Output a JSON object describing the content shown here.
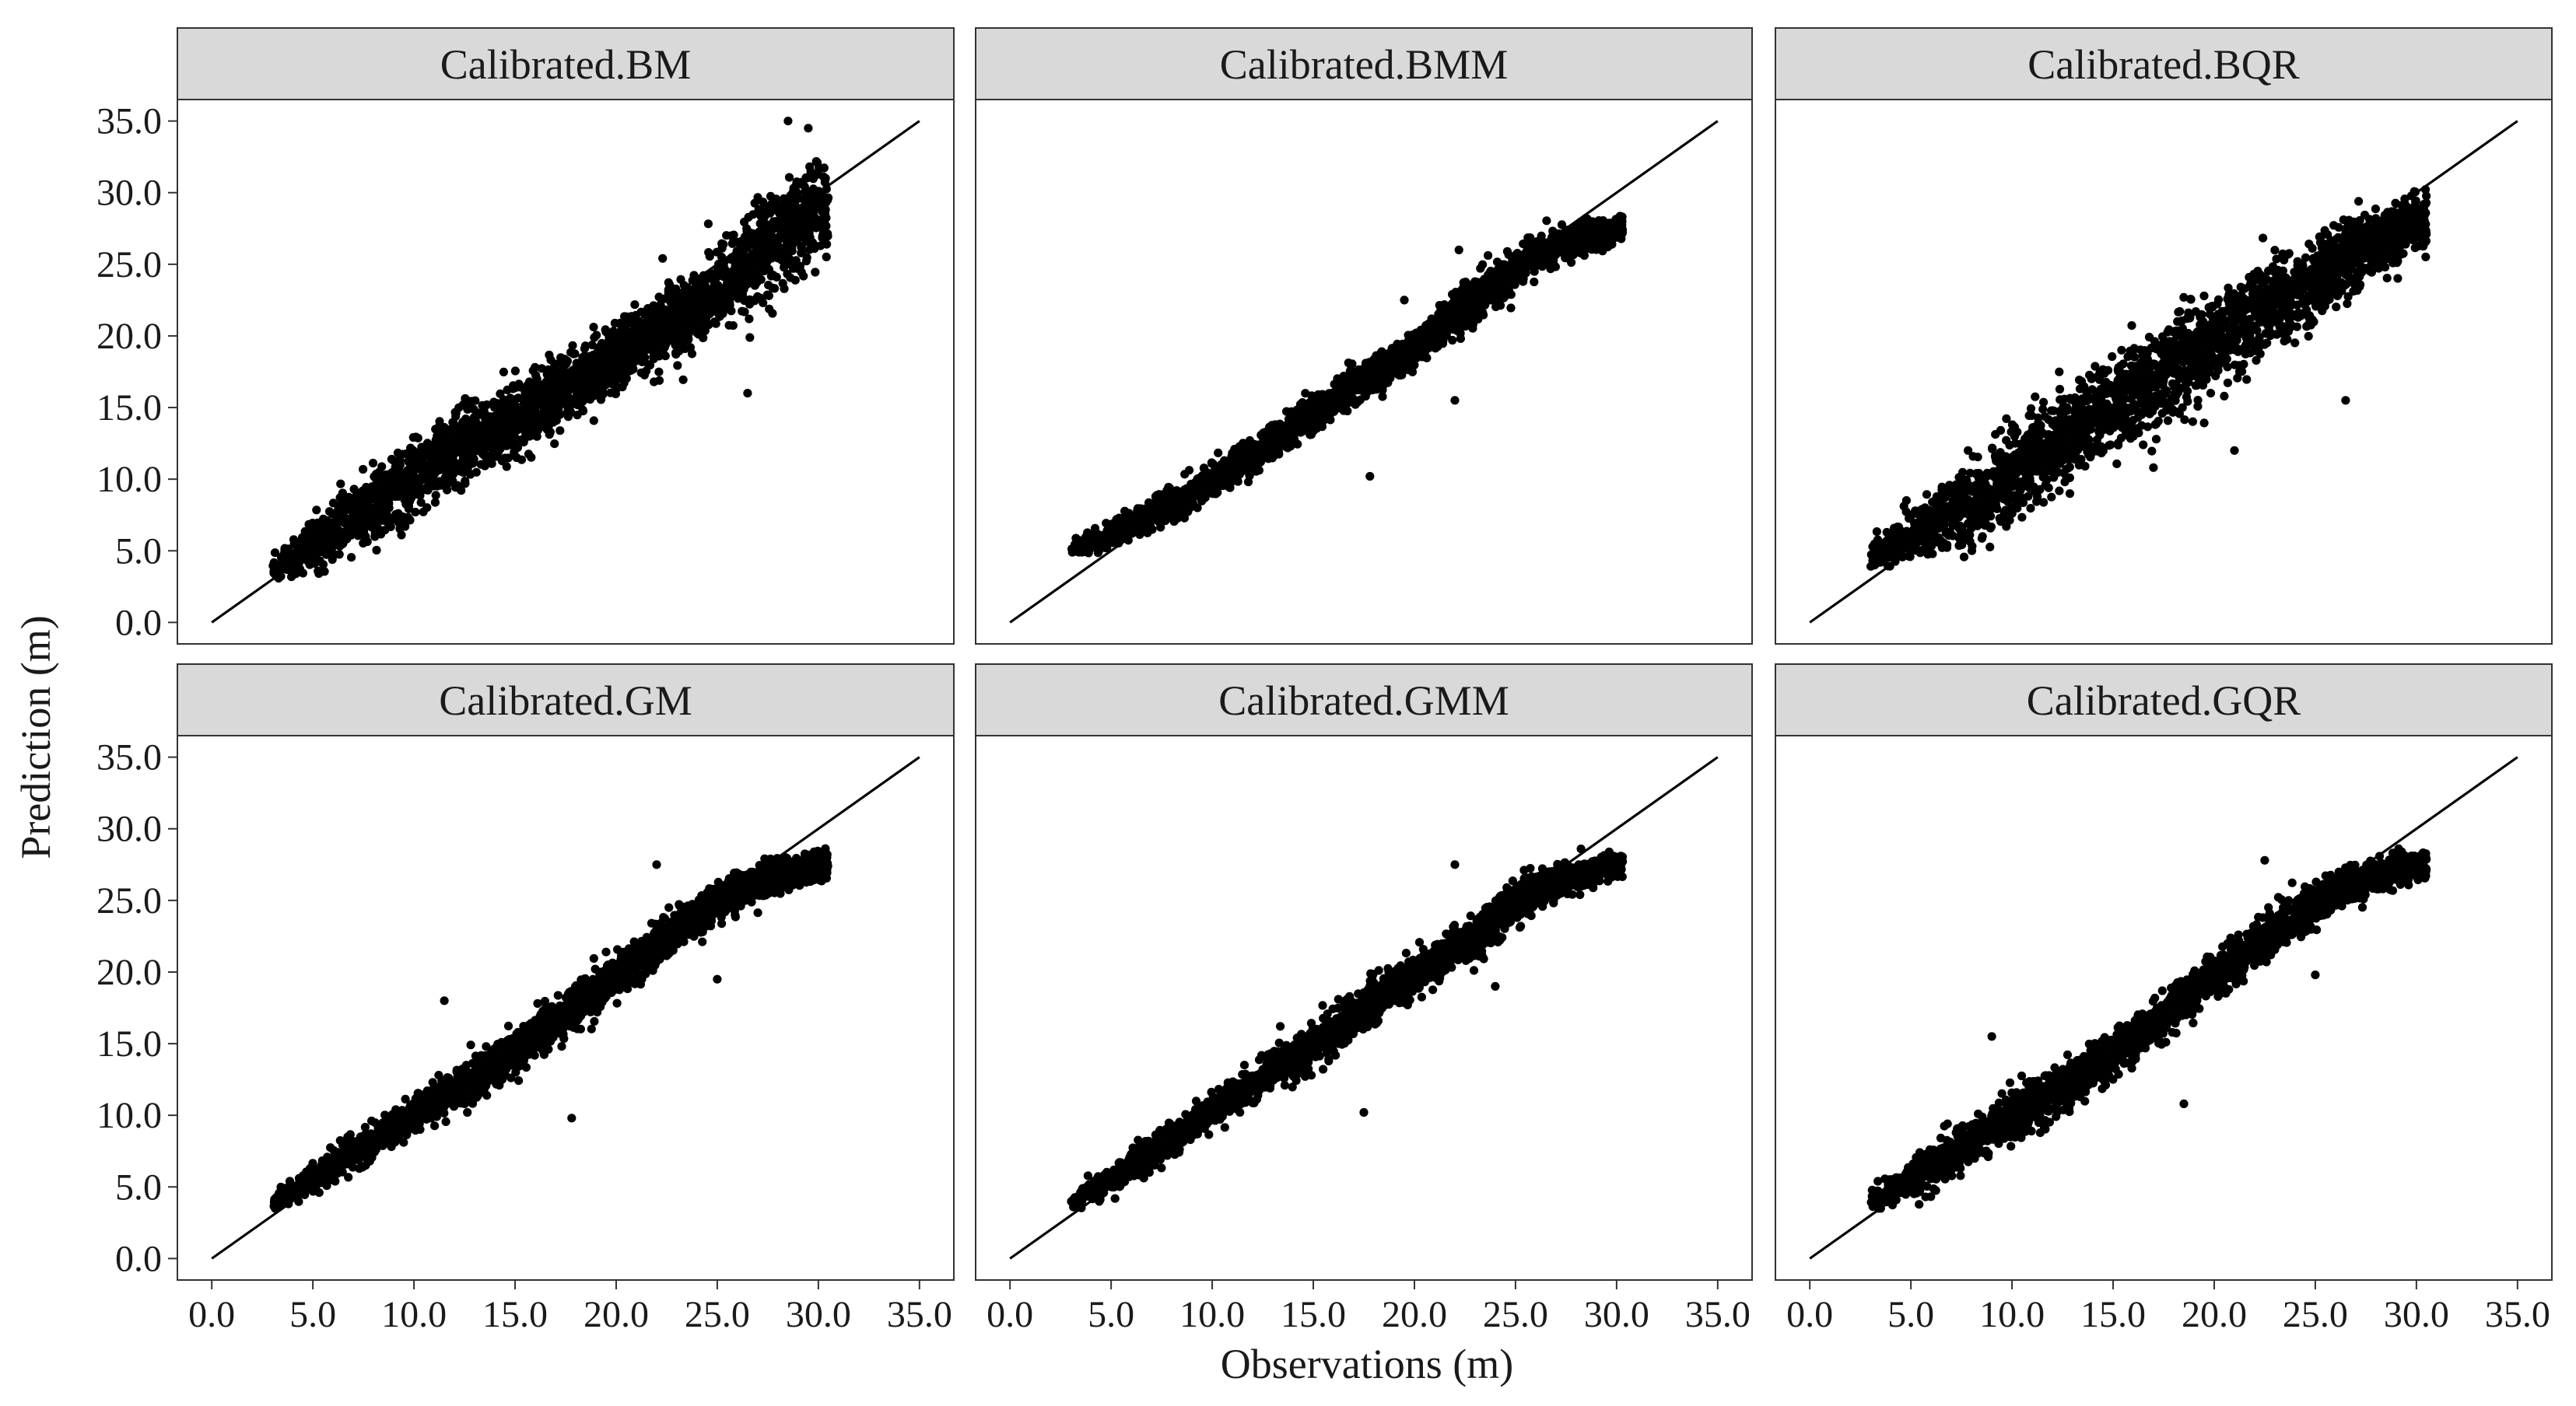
{
  "chart_data": {
    "type": "scatter",
    "layout": "facet-grid",
    "facet_rows": 2,
    "facet_cols": 3,
    "xlabel": "Observations (m)",
    "ylabel": "Prediction (m)",
    "xlim": [
      -1.7,
      36.7
    ],
    "ylim": [
      -1.5,
      36.5
    ],
    "xticks": [
      0,
      5,
      10,
      15,
      20,
      25,
      30,
      35
    ],
    "yticks": [
      0,
      5,
      10,
      15,
      20,
      25,
      30,
      35
    ],
    "xtick_labels": [
      "0.0",
      "5.0",
      "10.0",
      "15.0",
      "20.0",
      "25.0",
      "30.0",
      "35.0"
    ],
    "ytick_labels": [
      "0.0",
      "5.0",
      "10.0",
      "15.0",
      "20.0",
      "25.0",
      "30.0",
      "35.0"
    ],
    "reference_line": {
      "from": [
        0,
        0
      ],
      "to": [
        35,
        35
      ]
    },
    "grid": false,
    "colors": {
      "points": "#000000",
      "line": "#000000",
      "strip_fill": "#d9d9d9",
      "strip_border": "#333333",
      "panel_border": "#333333"
    },
    "panels": [
      {
        "title": "Calibrated.BM",
        "x_range": [
          3.0,
          30.5
        ],
        "y_range": [
          2.5,
          35.0
        ],
        "trend": [
          [
            3.0,
            3.8
          ],
          [
            8.0,
            8.2
          ],
          [
            12.0,
            12.0
          ],
          [
            16.0,
            15.0
          ],
          [
            20.0,
            18.5
          ],
          [
            24.0,
            22.0
          ],
          [
            27.0,
            25.5
          ],
          [
            30.0,
            29.0
          ]
        ],
        "spread": [
          [
            3.0,
            0.8
          ],
          [
            8.0,
            2.3
          ],
          [
            12.0,
            2.4
          ],
          [
            16.0,
            2.2
          ],
          [
            20.0,
            2.0
          ],
          [
            24.0,
            2.4
          ],
          [
            27.0,
            3.0
          ],
          [
            30.0,
            3.0
          ]
        ],
        "outliers": [
          [
            26.5,
            16.0
          ],
          [
            28.5,
            35.0
          ],
          [
            29.5,
            34.5
          ]
        ]
      },
      {
        "title": "Calibrated.BMM",
        "x_range": [
          3.0,
          30.3
        ],
        "y_range": [
          4.3,
          29.0
        ],
        "trend": [
          [
            3.0,
            5.0
          ],
          [
            6.0,
            6.8
          ],
          [
            10.0,
            9.8
          ],
          [
            14.0,
            13.5
          ],
          [
            17.0,
            16.5
          ],
          [
            20.0,
            19.2
          ],
          [
            23.0,
            22.5
          ],
          [
            26.0,
            25.8
          ],
          [
            30.0,
            27.5
          ]
        ],
        "spread": [
          [
            3.0,
            0.4
          ],
          [
            6.0,
            0.9
          ],
          [
            10.0,
            1.0
          ],
          [
            14.0,
            1.1
          ],
          [
            17.0,
            1.1
          ],
          [
            20.0,
            1.1
          ],
          [
            23.0,
            1.3
          ],
          [
            26.0,
            1.1
          ],
          [
            30.0,
            0.8
          ]
        ],
        "outliers": [
          [
            17.8,
            10.2
          ],
          [
            19.5,
            22.5
          ],
          [
            22.0,
            15.5
          ],
          [
            22.2,
            26.0
          ]
        ]
      },
      {
        "title": "Calibrated.BQR",
        "x_range": [
          3.0,
          30.5
        ],
        "y_range": [
          3.0,
          31.0
        ],
        "trend": [
          [
            3.0,
            4.6
          ],
          [
            8.0,
            8.2
          ],
          [
            12.0,
            12.5
          ],
          [
            16.0,
            16.0
          ],
          [
            20.0,
            19.5
          ],
          [
            24.0,
            23.0
          ],
          [
            27.0,
            25.8
          ],
          [
            30.0,
            28.0
          ]
        ],
        "spread": [
          [
            3.0,
            0.9
          ],
          [
            8.0,
            2.6
          ],
          [
            12.0,
            3.0
          ],
          [
            16.0,
            3.0
          ],
          [
            20.0,
            2.8
          ],
          [
            24.0,
            2.5
          ],
          [
            27.0,
            2.2
          ],
          [
            30.0,
            1.6
          ]
        ],
        "outliers": [
          [
            26.5,
            15.5
          ],
          [
            21.0,
            12.0
          ]
        ]
      },
      {
        "title": "Calibrated.GM",
        "x_range": [
          3.0,
          30.5
        ],
        "y_range": [
          3.5,
          29.5
        ],
        "trend": [
          [
            3.0,
            3.8
          ],
          [
            6.0,
            6.5
          ],
          [
            10.0,
            10.0
          ],
          [
            14.0,
            13.5
          ],
          [
            17.0,
            16.5
          ],
          [
            20.0,
            19.8
          ],
          [
            23.0,
            22.8
          ],
          [
            26.0,
            25.8
          ],
          [
            30.0,
            27.5
          ]
        ],
        "spread": [
          [
            3.0,
            0.5
          ],
          [
            6.0,
            1.0
          ],
          [
            10.0,
            1.1
          ],
          [
            14.0,
            1.3
          ],
          [
            17.0,
            1.3
          ],
          [
            20.0,
            1.2
          ],
          [
            23.0,
            1.4
          ],
          [
            26.0,
            1.1
          ],
          [
            30.0,
            0.8
          ]
        ],
        "outliers": [
          [
            17.8,
            9.8
          ],
          [
            25.0,
            19.5
          ],
          [
            11.5,
            18.0
          ],
          [
            22.0,
            27.5
          ]
        ]
      },
      {
        "title": "Calibrated.GMM",
        "x_range": [
          3.0,
          30.3
        ],
        "y_range": [
          3.5,
          29.0
        ],
        "trend": [
          [
            3.0,
            3.8
          ],
          [
            6.0,
            6.5
          ],
          [
            10.0,
            10.3
          ],
          [
            14.0,
            14.0
          ],
          [
            17.0,
            17.0
          ],
          [
            20.0,
            19.8
          ],
          [
            23.0,
            22.5
          ],
          [
            26.0,
            25.8
          ],
          [
            30.0,
            27.5
          ]
        ],
        "spread": [
          [
            3.0,
            0.5
          ],
          [
            6.0,
            1.0
          ],
          [
            10.0,
            1.1
          ],
          [
            14.0,
            1.3
          ],
          [
            17.0,
            1.3
          ],
          [
            20.0,
            1.2
          ],
          [
            23.0,
            1.4
          ],
          [
            26.0,
            1.1
          ],
          [
            30.0,
            0.8
          ]
        ],
        "outliers": [
          [
            17.5,
            10.2
          ],
          [
            22.0,
            27.5
          ],
          [
            24.0,
            19.0
          ]
        ]
      },
      {
        "title": "Calibrated.GQR",
        "x_range": [
          3.0,
          30.5
        ],
        "y_range": [
          3.5,
          29.0
        ],
        "trend": [
          [
            3.0,
            4.0
          ],
          [
            6.0,
            6.3
          ],
          [
            10.0,
            9.8
          ],
          [
            14.0,
            13.3
          ],
          [
            17.0,
            16.3
          ],
          [
            20.0,
            19.8
          ],
          [
            23.0,
            22.8
          ],
          [
            26.0,
            25.8
          ],
          [
            30.0,
            27.5
          ]
        ],
        "spread": [
          [
            3.0,
            0.6
          ],
          [
            6.0,
            1.3
          ],
          [
            10.0,
            1.5
          ],
          [
            14.0,
            1.5
          ],
          [
            17.0,
            1.3
          ],
          [
            20.0,
            1.2
          ],
          [
            23.0,
            1.5
          ],
          [
            26.0,
            1.2
          ],
          [
            30.0,
            0.8
          ]
        ],
        "outliers": [
          [
            18.5,
            10.8
          ],
          [
            25.0,
            19.8
          ],
          [
            22.5,
            27.8
          ],
          [
            9.0,
            15.5
          ]
        ]
      }
    ]
  }
}
